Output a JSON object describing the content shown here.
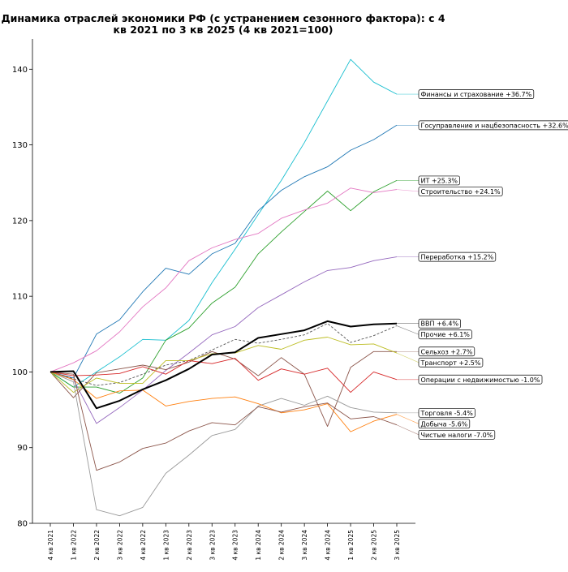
{
  "chart_data": {
    "type": "line",
    "title_lines": [
      "Динамика отраслей экономики РФ (с устранением сезонного фактора): с 4",
      "кв 2021 по 3 кв 2025 (4 кв 2021=100)"
    ],
    "xlabel": "",
    "ylabel": "",
    "ylim": [
      80,
      144
    ],
    "yticks": [
      80,
      90,
      100,
      110,
      120,
      130,
      140
    ],
    "ytick_labels": [
      "80",
      "90",
      "100",
      "110",
      "120",
      "130",
      "140"
    ],
    "grid": false,
    "legend": "inline labels at line ends (right)",
    "categories": [
      "4 кв 2021",
      "1 кв 2022",
      "2 кв 2022",
      "3 кв 2022",
      "4 кв 2022",
      "1 кв 2023",
      "2 кв 2023",
      "3 кв 2023",
      "4 кв 2023",
      "1 кв 2024",
      "2 кв 2024",
      "3 кв 2024",
      "4 кв 2024",
      "1 кв 2025",
      "2 кв 2025",
      "3 кв 2025"
    ],
    "series": [
      {
        "name": "Финансы и страхование",
        "label": "Финансы и страхование  +36.7%",
        "color": "#17becf",
        "dashed": false,
        "bold": false,
        "values": [
          100,
          98,
          100,
          102,
          104.3,
          104.2,
          106.8,
          111.8,
          116.2,
          120.8,
          125.3,
          130.3,
          135.8,
          141.3,
          138.3,
          136.7
        ]
      },
      {
        "name": "Госуправление и нацбезопасность",
        "label": "Госуправление и нацбезопасность  +32.6%",
        "color": "#1f77b4",
        "dashed": false,
        "bold": false,
        "values": [
          100,
          99.2,
          105,
          106.9,
          110.6,
          113.7,
          112.9,
          115.6,
          117,
          121.3,
          124,
          125.8,
          127.1,
          129.3,
          130.7,
          132.6
        ]
      },
      {
        "name": "ИТ",
        "label": "ИТ  +25.3%",
        "color": "#2ca02c",
        "dashed": false,
        "bold": false,
        "values": [
          100,
          98,
          98,
          97.2,
          99.2,
          104.2,
          105.8,
          109.1,
          111.2,
          115.6,
          118.5,
          121.2,
          123.9,
          121.3,
          123.8,
          125.3
        ]
      },
      {
        "name": "Строительство",
        "label": "Строительство  +24.1%",
        "color": "#e377c2",
        "dashed": false,
        "bold": false,
        "values": [
          100,
          101.2,
          102.8,
          105.3,
          108.6,
          111.1,
          114.7,
          116.4,
          117.5,
          118.3,
          120.3,
          121.4,
          122.3,
          124.3,
          123.7,
          124.1
        ]
      },
      {
        "name": "Переработка",
        "label": "Переработка  +15.2%",
        "color": "#9467bd",
        "dashed": false,
        "bold": false,
        "values": [
          100,
          99,
          93.2,
          95.3,
          97.6,
          100.2,
          102.5,
          104.9,
          106,
          108.5,
          110.2,
          111.9,
          113.4,
          113.8,
          114.7,
          115.2
        ]
      },
      {
        "name": "ВВП",
        "label": "ВВП  +6.4%",
        "color": "#000000",
        "dashed": false,
        "bold": true,
        "values": [
          100,
          100.1,
          95.2,
          96.2,
          97.7,
          98.9,
          100.4,
          102.3,
          102.6,
          104.5,
          105,
          105.5,
          106.7,
          106,
          106.3,
          106.4
        ]
      },
      {
        "name": "Прочие",
        "label": "Прочие  +6.1%",
        "color": "#555555",
        "dashed": true,
        "bold": false,
        "values": [
          100,
          99.1,
          98.2,
          98.6,
          99.7,
          100.9,
          101.5,
          102.9,
          104.3,
          103.8,
          104.3,
          104.9,
          106.4,
          103.9,
          104.8,
          106.1
        ]
      },
      {
        "name": "Сельхоз",
        "label": "Сельхоз  +2.7%",
        "color": "#8c564b",
        "dashed": false,
        "bold": false,
        "values": [
          100,
          96.6,
          99.9,
          100.4,
          100.9,
          100.3,
          101.3,
          102.7,
          101.7,
          99.5,
          101.9,
          99.7,
          92.8,
          100.6,
          102.7,
          102.7
        ]
      },
      {
        "name": "Транспорт",
        "label": "Транспорт  +2.5%",
        "color": "#bcbd22",
        "dashed": false,
        "bold": false,
        "values": [
          100,
          97.3,
          99.2,
          98.5,
          98.5,
          101.5,
          101.5,
          102.4,
          102.5,
          103.5,
          103,
          104.2,
          104.6,
          103.6,
          103.7,
          102.5
        ]
      },
      {
        "name": "Операции с недвижимостью",
        "label": "Операции с недвижимостью  -1.0%",
        "color": "#d62728",
        "dashed": false,
        "bold": false,
        "values": [
          100,
          99.5,
          99.6,
          99.8,
          100.7,
          99.7,
          101.5,
          101.1,
          101.8,
          98.9,
          100.4,
          99.7,
          100.5,
          97.3,
          100,
          99
        ]
      },
      {
        "name": "Торговля",
        "label": "Торговля  -5.4%",
        "color": "#999999",
        "dashed": false,
        "bold": false,
        "values": [
          100,
          98.7,
          81.8,
          81,
          82.1,
          86.6,
          89,
          91.6,
          92.4,
          95.5,
          96.5,
          95.6,
          96.8,
          95.3,
          94.7,
          94.6
        ]
      },
      {
        "name": "Добыча",
        "label": "Добыча  -5.6%",
        "color": "#ff7f0e",
        "dashed": false,
        "bold": false,
        "values": [
          100,
          99,
          96.5,
          97.5,
          97.6,
          95.5,
          96.1,
          96.5,
          96.7,
          95.8,
          94.6,
          95,
          95.8,
          92.1,
          93.5,
          94.4
        ]
      },
      {
        "name": "Чистые налоги",
        "label": "Чистые налоги  -7.0%",
        "color": "#8c564b",
        "dashed": false,
        "bold": false,
        "values": [
          100,
          99.7,
          87,
          88.1,
          89.9,
          90.6,
          92.2,
          93.3,
          93,
          95.4,
          94.7,
          95.4,
          95.9,
          93.8,
          94.1,
          93
        ]
      }
    ]
  }
}
